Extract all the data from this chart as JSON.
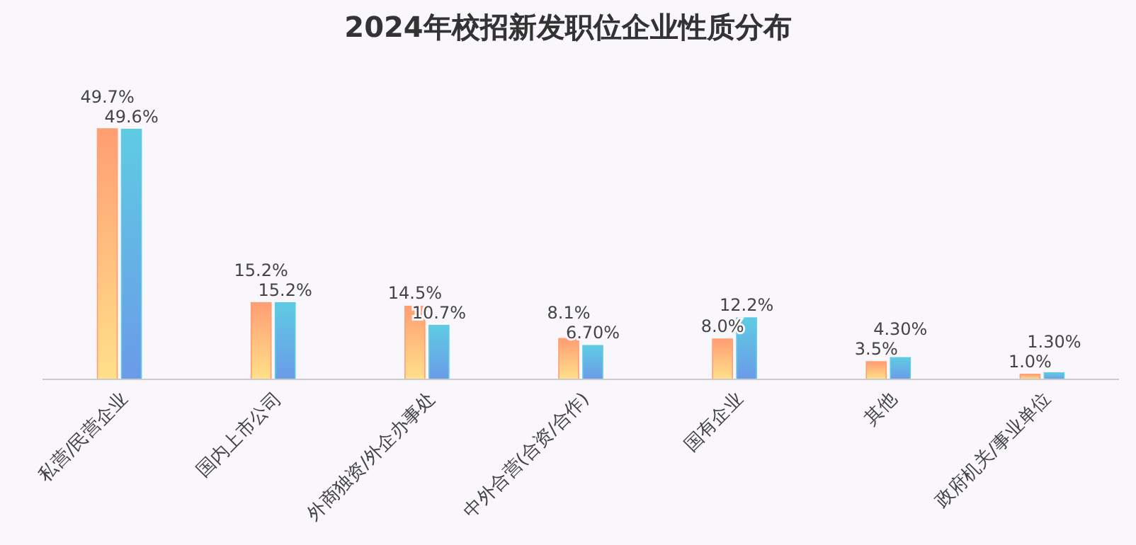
{
  "chart_data": {
    "type": "bar",
    "title": "2024年校招新发职位企业性质分布",
    "categories": [
      "私营/民营企业",
      "国内上市公司",
      "外商独资/外企办事处",
      "中外合营(合资/合作)",
      "国有企业",
      "其他",
      "政府机关/事业单位"
    ],
    "series": [
      {
        "color": "#ff9e73",
        "values": [
          49.7,
          15.2,
          14.5,
          8.1,
          8.0,
          3.5,
          1.0
        ],
        "value_labels": [
          "49.7%",
          "15.2%",
          "14.5%",
          "8.1%",
          "8.0%",
          "3.5%",
          "1.0%"
        ]
      },
      {
        "color": "#5fcbe3",
        "values": [
          49.6,
          15.2,
          10.7,
          6.7,
          12.2,
          4.3,
          1.3
        ],
        "value_labels": [
          "49.6%",
          "15.2%",
          "10.7%",
          "6.70%",
          "12.2%",
          "4.30%",
          "1.30%"
        ]
      }
    ],
    "tick_labels": "x"
  }
}
